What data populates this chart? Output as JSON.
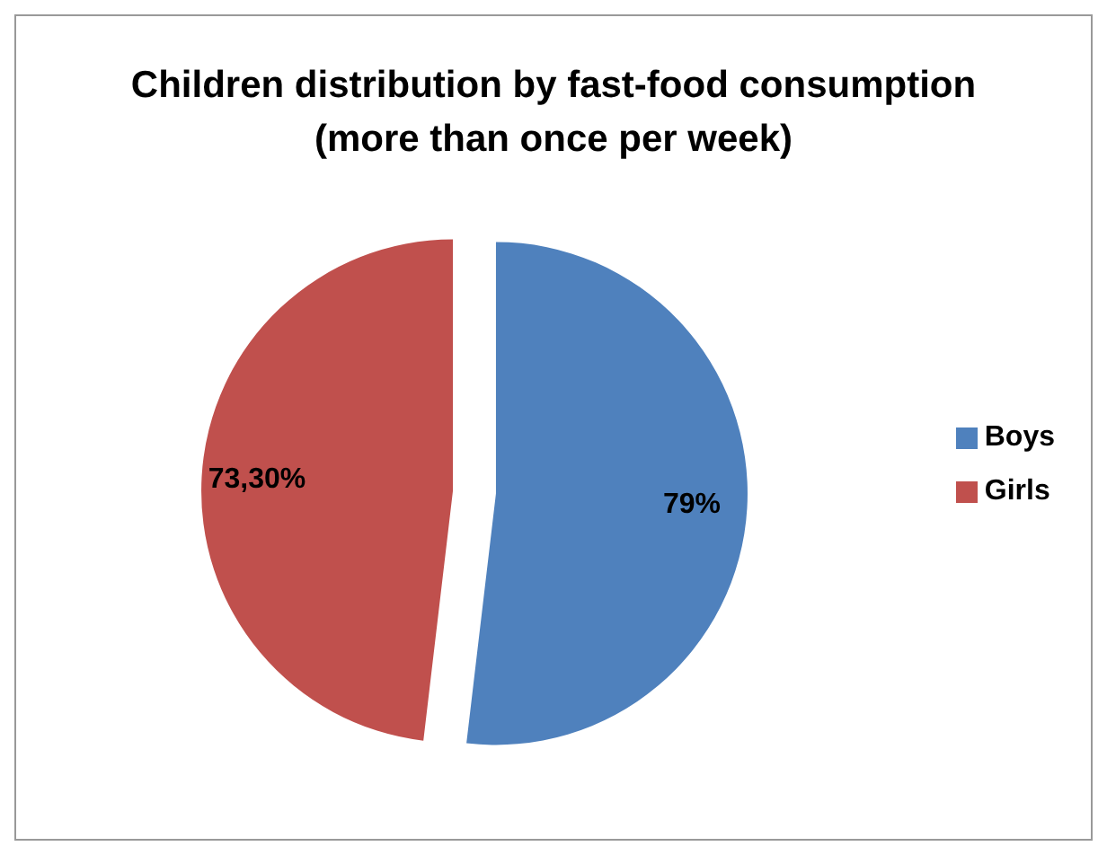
{
  "chart_data": {
    "type": "pie",
    "title": "Children distribution by fast-food consumption",
    "subtitle": "(more than once per week)",
    "categories": [
      "Boys",
      "Girls"
    ],
    "values": [
      79,
      73.3
    ],
    "value_labels": [
      "79%",
      "73,30%"
    ],
    "colors": [
      "#4f81bd",
      "#c0504d"
    ],
    "legend": "right"
  }
}
